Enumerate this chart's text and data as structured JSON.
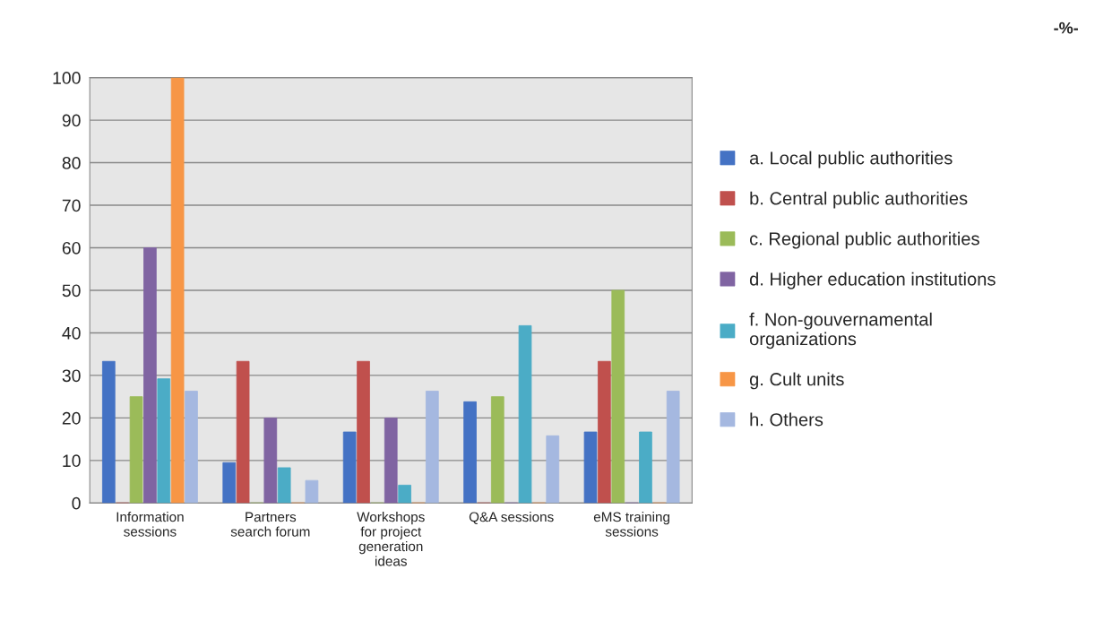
{
  "chart_data": {
    "type": "bar",
    "categories": [
      "Information sessions",
      "Partners search forum",
      "Workshops for project generation ideas",
      "Q&A sessions",
      "eMS training sessions"
    ],
    "series": [
      {
        "name": "a. Local public authorities",
        "color": "#4472c4",
        "values": [
          33.3,
          9.5,
          16.7,
          23.8,
          16.7
        ]
      },
      {
        "name": "b. Central public authorities",
        "color": "#c0504d",
        "values": [
          0,
          33.3,
          33.3,
          0,
          33.3
        ]
      },
      {
        "name": "c. Regional public authorities",
        "color": "#9bbb59",
        "values": [
          25,
          0,
          0,
          25,
          50
        ]
      },
      {
        "name": "d. Higher education institutions",
        "color": "#8064a2",
        "values": [
          60,
          20,
          20,
          0,
          0
        ]
      },
      {
        "name": "f. Non-gouvernamental organizations",
        "color": "#4bacc6",
        "values": [
          29.2,
          8.3,
          4.2,
          41.7,
          16.7
        ]
      },
      {
        "name": "g. Cult units",
        "color": "#f79646",
        "values": [
          100,
          0,
          0,
          0,
          0
        ]
      },
      {
        "name": "h. Others",
        "color": "#a5b8e0",
        "values": [
          26.3,
          5.3,
          26.3,
          15.8,
          26.3
        ]
      }
    ],
    "ylim": [
      0,
      100
    ],
    "yticks": [
      0,
      10,
      20,
      30,
      40,
      50,
      60,
      70,
      80,
      90,
      100
    ],
    "grid": "y",
    "legend": "right",
    "annotations": [
      "-%-"
    ]
  }
}
